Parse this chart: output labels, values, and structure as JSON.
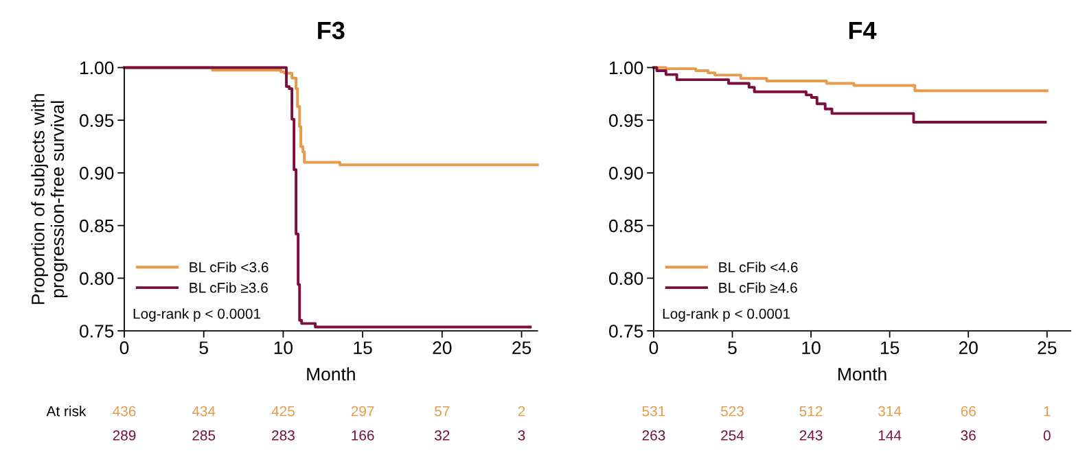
{
  "chart_data": [
    {
      "type": "step",
      "title": "F3",
      "xlabel": "Month",
      "ylabel": "Proportion of subjects with\nprogression-free survival",
      "xlim": [
        0,
        26
      ],
      "xticks": [
        0,
        5,
        10,
        15,
        20,
        25
      ],
      "ylim": [
        0.75,
        1.0
      ],
      "yticks": [
        {
          "value": 0.75,
          "label": "0.75"
        },
        {
          "value": 0.8,
          "label": "0.80"
        },
        {
          "value": 0.85,
          "label": "0.85"
        },
        {
          "value": 0.9,
          "label": "0.90"
        },
        {
          "value": 0.95,
          "label": "0.95"
        },
        {
          "value": 1.0,
          "label": "1.00"
        }
      ],
      "grid": false,
      "legend": "bottom left",
      "marker": "none",
      "line_style": "solid",
      "series": [
        {
          "name": "BL cFib <3.6",
          "color": "#e8994a",
          "x": [
            0,
            5.55,
            9.86,
            10.1,
            10.55,
            10.81,
            10.9,
            11.03,
            11.11,
            11.24,
            11.33,
            13.57,
            26
          ],
          "values": [
            1.0,
            0.9975,
            0.996,
            0.9946,
            0.99,
            0.98,
            0.963,
            0.944,
            0.925,
            0.92,
            0.91,
            0.9076,
            0.9076
          ]
        },
        {
          "name": "BL cFib ≥3.6",
          "color": "#7b0e3d",
          "x": [
            0,
            10.2,
            10.38,
            10.55,
            10.68,
            10.81,
            10.94,
            11.03,
            11.16,
            12.02,
            25.55
          ],
          "values": [
            1.0,
            0.982,
            0.98,
            0.951,
            0.903,
            0.842,
            0.794,
            0.76,
            0.757,
            0.7536,
            0.7536
          ]
        }
      ],
      "annotations": [
        "Log-rank p < 0.0001",
        "At risk",
        "436",
        "434",
        "425",
        "297",
        "57",
        "2",
        "289",
        "285",
        "283",
        "166",
        "32",
        "3"
      ]
    },
    {
      "type": "step",
      "title": "F4",
      "xlabel": "Month",
      "xlim": [
        0,
        26.5
      ],
      "xticks": [
        0,
        5,
        10,
        15,
        20,
        25
      ],
      "ylim": [
        0.75,
        1.0
      ],
      "yticks": [
        {
          "value": 0.75,
          "label": "0.75"
        },
        {
          "value": 0.8,
          "label": "0.80"
        },
        {
          "value": 0.85,
          "label": "0.85"
        },
        {
          "value": 0.9,
          "label": "0.90"
        },
        {
          "value": 0.95,
          "label": "0.95"
        },
        {
          "value": 1.0,
          "label": "1.00"
        }
      ],
      "grid": false,
      "legend": "bottom left",
      "marker": "none",
      "line_style": "solid",
      "series": [
        {
          "name": "BL cFib <4.6",
          "color": "#e8994a",
          "x": [
            0,
            0.78,
            2.68,
            3.46,
            3.89,
            5.54,
            7.18,
            10.99,
            12.72,
            16.6,
            25.0
          ],
          "values": [
            1.0,
            0.9989,
            0.997,
            0.995,
            0.9929,
            0.9897,
            0.9873,
            0.985,
            0.983,
            0.978,
            0.978
          ]
        },
        {
          "name": "BL cFib ≥4.6",
          "color": "#7b0e3d",
          "x": [
            0,
            0.2,
            0.78,
            1.47,
            4.76,
            6.06,
            6.4,
            9.69,
            10.03,
            10.38,
            10.9,
            11.33,
            16.52,
            24.9
          ],
          "values": [
            1.0,
            0.997,
            0.9934,
            0.9885,
            0.985,
            0.9813,
            0.977,
            0.974,
            0.9716,
            0.9656,
            0.9607,
            0.9564,
            0.9482,
            0.9482
          ]
        }
      ],
      "annotations": [
        "Log-rank p < 0.0001",
        "531",
        "523",
        "512",
        "314",
        "66",
        "1",
        "263",
        "254",
        "243",
        "144",
        "36",
        "0"
      ]
    }
  ]
}
